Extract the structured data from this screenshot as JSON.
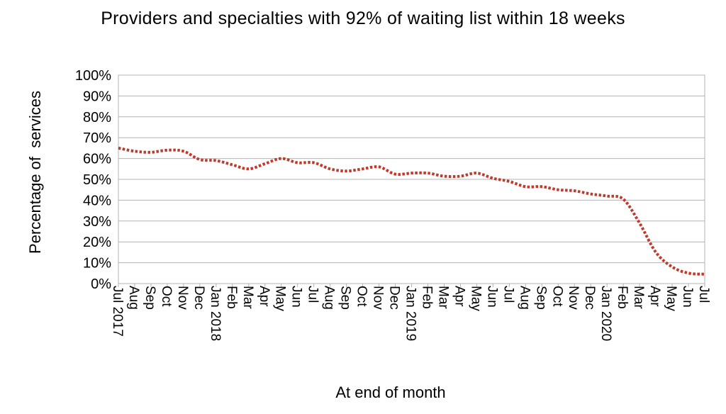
{
  "chart_data": {
    "type": "line",
    "title": "Providers and specialties with 92% of waiting list within 18 weeks",
    "xlabel": "At end of month",
    "ylabel": "Percentage of  services",
    "ylim": [
      0,
      100
    ],
    "yticks": [
      "0%",
      "10%",
      "20%",
      "30%",
      "40%",
      "50%",
      "60%",
      "70%",
      "80%",
      "90%",
      "100%"
    ],
    "grid": true,
    "legend": "none",
    "series_color": "#c0392b",
    "categories": [
      "Jul 2017",
      "Aug",
      "Sep",
      "Oct",
      "Nov",
      "Dec",
      "Jan 2018",
      "Feb",
      "Mar",
      "Apr",
      "May",
      "Jun",
      "Jul",
      "Aug",
      "Sep",
      "Oct",
      "Nov",
      "Dec",
      "Jan 2019",
      "Feb",
      "Mar",
      "Apr",
      "May",
      "Jun",
      "Jul",
      "Aug",
      "Sep",
      "Oct",
      "Nov",
      "Dec",
      "Jan 2020",
      "Feb",
      "Mar",
      "Apr",
      "May",
      "Jun",
      "Jul"
    ],
    "series": [
      {
        "values": [
          65,
          63.5,
          63,
          64,
          63.5,
          59.5,
          59,
          57,
          55,
          57.5,
          60,
          58,
          58,
          55,
          54,
          55,
          56,
          52.5,
          53,
          53,
          51.5,
          51.5,
          53,
          50.5,
          49,
          46.5,
          46.5,
          45,
          44.5,
          43,
          42,
          40.5,
          29,
          15,
          8,
          5,
          4.5
        ]
      }
    ]
  }
}
